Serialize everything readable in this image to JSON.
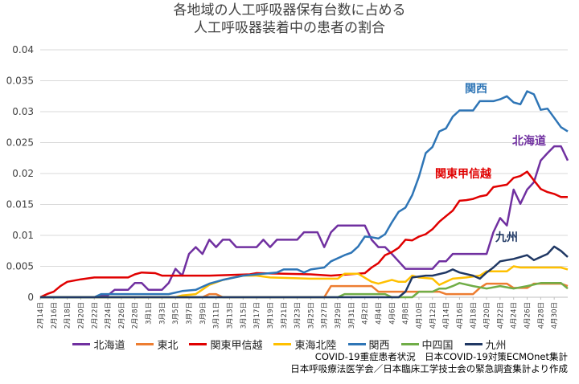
{
  "chart_data": {
    "type": "line",
    "title_lines": [
      "各地域の人工呼吸器保有台数に占める",
      "人工呼吸器装着中の患者の割合"
    ],
    "ylim": [
      0,
      0.04
    ],
    "y_ticks": [
      "0",
      "0.005",
      "0.01",
      "0.015",
      "0.02",
      "0.025",
      "0.03",
      "0.035",
      "0.04"
    ],
    "y_tick_values": [
      0,
      0.005,
      0.01,
      0.015,
      0.02,
      0.025,
      0.03,
      0.035,
      0.04
    ],
    "x_start": "2月14日",
    "x_end": "4月30日",
    "x_tick_labels": [
      "2月14日",
      "2月16日",
      "2月18日",
      "2月20日",
      "2月22日",
      "2月24日",
      "2月26日",
      "2月28日",
      "3月1日",
      "3月3日",
      "3月5日",
      "3月7日",
      "3月9日",
      "3月11日",
      "3月13日",
      "3月15日",
      "3月17日",
      "3月19日",
      "3月21日",
      "3月23日",
      "3月25日",
      "3月27日",
      "3月29日",
      "3月31日",
      "4月2日",
      "4月4日",
      "4月6日",
      "4月8日",
      "4月10日",
      "4月12日",
      "4月14日",
      "4月16日",
      "4月18日",
      "4月20日",
      "4月22日",
      "4月24日",
      "4月26日",
      "4月28日",
      "4月30日"
    ],
    "grid": true,
    "legend_position": "bottom",
    "series": [
      {
        "name": "北海道",
        "color": "#7030a0",
        "label": "北海道",
        "values": [
          [
            "2月14日",
            0
          ],
          [
            "2月22日",
            0
          ],
          [
            "2月23日",
            0.0003
          ],
          [
            "2月24日",
            0.0003
          ],
          [
            "2月25日",
            0.0012
          ],
          [
            "2月27日",
            0.0012
          ],
          [
            "2月28日",
            0.0023
          ],
          [
            "2月29日",
            0.0023
          ],
          [
            "3月1日",
            0.0012
          ],
          [
            "3月3日",
            0.0012
          ],
          [
            "3月4日",
            0.0023
          ],
          [
            "3月5日",
            0.0046
          ],
          [
            "3月6日",
            0.0035
          ],
          [
            "3月7日",
            0.007
          ],
          [
            "3月8日",
            0.0081
          ],
          [
            "3月9日",
            0.007
          ],
          [
            "3月10日",
            0.0093
          ],
          [
            "3月11日",
            0.0081
          ],
          [
            "3月12日",
            0.0093
          ],
          [
            "3月13日",
            0.0093
          ],
          [
            "3月14日",
            0.0081
          ],
          [
            "3月17日",
            0.0081
          ],
          [
            "3月18日",
            0.0093
          ],
          [
            "3月19日",
            0.0081
          ],
          [
            "3月20日",
            0.0093
          ],
          [
            "3月23日",
            0.0093
          ],
          [
            "3月24日",
            0.0105
          ],
          [
            "3月26日",
            0.0105
          ],
          [
            "3月27日",
            0.0081
          ],
          [
            "3月28日",
            0.0105
          ],
          [
            "3月29日",
            0.0116
          ],
          [
            "4月2日",
            0.0116
          ],
          [
            "4月3日",
            0.0093
          ],
          [
            "4月4日",
            0.0081
          ],
          [
            "4月5日",
            0.0081
          ],
          [
            "4月6日",
            0.007
          ],
          [
            "4月7日",
            0.0058
          ],
          [
            "4月8日",
            0.0046
          ],
          [
            "4月12日",
            0.0046
          ],
          [
            "4月13日",
            0.0058
          ],
          [
            "4月14日",
            0.0058
          ],
          [
            "4月15日",
            0.007
          ],
          [
            "4月20日",
            0.007
          ],
          [
            "4月21日",
            0.0105
          ],
          [
            "4月22日",
            0.0128
          ],
          [
            "4月23日",
            0.0116
          ],
          [
            "4月24日",
            0.0174
          ],
          [
            "4月25日",
            0.0151
          ],
          [
            "4月26日",
            0.0174
          ],
          [
            "4月27日",
            0.0186
          ],
          [
            "4月28日",
            0.0221
          ],
          [
            "4月29日",
            0.0233
          ],
          [
            "4月30日",
            0.0244
          ],
          [
            "5月1日",
            0.0244
          ],
          [
            "5月2日",
            0.0221
          ]
        ]
      },
      {
        "name": "東北",
        "color": "#ed7d31",
        "label": "",
        "values": [
          [
            "2月14日",
            0
          ],
          [
            "3月9日",
            0
          ],
          [
            "3月10日",
            0.0005
          ],
          [
            "3月11日",
            0.0005
          ],
          [
            "3月12日",
            0
          ],
          [
            "3月27日",
            0
          ],
          [
            "3月28日",
            0.0018
          ],
          [
            "4月3日",
            0.0018
          ],
          [
            "4月4日",
            0.0009
          ],
          [
            "4月10日",
            0.0009
          ],
          [
            "4月11日",
            0.0009
          ],
          [
            "4月13日",
            0.0009
          ],
          [
            "4月14日",
            0.0005
          ],
          [
            "4月18日",
            0.0005
          ],
          [
            "4月19日",
            0.0015
          ],
          [
            "4月20日",
            0.0022
          ],
          [
            "4月23日",
            0.0022
          ],
          [
            "4月24日",
            0.0015
          ],
          [
            "4月26日",
            0.0015
          ],
          [
            "4月27日",
            0.0022
          ],
          [
            "5月1日",
            0.0022
          ],
          [
            "5月2日",
            0.0018
          ]
        ]
      },
      {
        "name": "関東甲信越",
        "color": "#e00000",
        "label": "関東甲信越",
        "values": [
          [
            "2月14日",
            0
          ],
          [
            "2月15日",
            0.0005
          ],
          [
            "2月16日",
            0.0009
          ],
          [
            "2月17日",
            0.0018
          ],
          [
            "2月18日",
            0.0025
          ],
          [
            "2月20日",
            0.0029
          ],
          [
            "2月22日",
            0.0032
          ],
          [
            "2月27日",
            0.0032
          ],
          [
            "2月28日",
            0.0037
          ],
          [
            "2月29日",
            0.004
          ],
          [
            "3月2日",
            0.0039
          ],
          [
            "3月3日",
            0.0035
          ],
          [
            "3月10日",
            0.0035
          ],
          [
            "3月16日",
            0.0037
          ],
          [
            "3月17日",
            0.0039
          ],
          [
            "3月25日",
            0.0037
          ],
          [
            "3月28日",
            0.0035
          ],
          [
            "4月2日",
            0.0039
          ],
          [
            "4月3日",
            0.0048
          ],
          [
            "4月4日",
            0.0055
          ],
          [
            "4月5日",
            0.0068
          ],
          [
            "4月6日",
            0.0073
          ],
          [
            "4月7日",
            0.008
          ],
          [
            "4月8日",
            0.0093
          ],
          [
            "4月9日",
            0.0092
          ],
          [
            "4月10日",
            0.0098
          ],
          [
            "4月11日",
            0.0102
          ],
          [
            "4月12日",
            0.011
          ],
          [
            "4月13日",
            0.0122
          ],
          [
            "4月14日",
            0.0131
          ],
          [
            "4月15日",
            0.014
          ],
          [
            "4月16日",
            0.0156
          ],
          [
            "4月17日",
            0.0157
          ],
          [
            "4月18日",
            0.0159
          ],
          [
            "4月19日",
            0.0163
          ],
          [
            "4月20日",
            0.0165
          ],
          [
            "4月21日",
            0.0178
          ],
          [
            "4月22日",
            0.018
          ],
          [
            "4月23日",
            0.0182
          ],
          [
            "4月24日",
            0.0193
          ],
          [
            "4月25日",
            0.0196
          ],
          [
            "4月26日",
            0.0203
          ],
          [
            "4月27日",
            0.0189
          ],
          [
            "4月28日",
            0.0175
          ],
          [
            "4月29日",
            0.017
          ],
          [
            "4月30日",
            0.0167
          ],
          [
            "5月1日",
            0.0162
          ],
          [
            "5月2日",
            0.0162
          ]
        ]
      },
      {
        "name": "東海北陸",
        "color": "#ffc000",
        "label": "",
        "values": [
          [
            "2月14日",
            0
          ],
          [
            "3月5日",
            0
          ],
          [
            "3月6日",
            0.0003
          ],
          [
            "3月8日",
            0.0005
          ],
          [
            "3月10日",
            0.002
          ],
          [
            "3月12日",
            0.0028
          ],
          [
            "3月15日",
            0.0035
          ],
          [
            "3月17日",
            0.0035
          ],
          [
            "3月19日",
            0.0032
          ],
          [
            "3月25日",
            0.003
          ],
          [
            "3月29日",
            0.003
          ],
          [
            "3月30日",
            0.0038
          ],
          [
            "4月1日",
            0.0038
          ],
          [
            "4月3日",
            0.0025
          ],
          [
            "4月4日",
            0.0022
          ],
          [
            "4月6日",
            0.0028
          ],
          [
            "4月7日",
            0.0025
          ],
          [
            "4月8日",
            0.0025
          ],
          [
            "4月9日",
            0.0035
          ],
          [
            "4月10日",
            0.0032
          ],
          [
            "4月12日",
            0.003
          ],
          [
            "4月13日",
            0.002
          ],
          [
            "4月15日",
            0.003
          ],
          [
            "4月17日",
            0.0032
          ],
          [
            "4月19日",
            0.0035
          ],
          [
            "4月20日",
            0.0042
          ],
          [
            "4月23日",
            0.0042
          ],
          [
            "4月24日",
            0.005
          ],
          [
            "4月25日",
            0.0048
          ],
          [
            "5月1日",
            0.0048
          ],
          [
            "5月2日",
            0.0045
          ]
        ]
      },
      {
        "name": "関西",
        "color": "#2e75b6",
        "label": "関西",
        "values": [
          [
            "2月14日",
            0
          ],
          [
            "2月22日",
            0
          ],
          [
            "2月23日",
            0.0005
          ],
          [
            "3月4日",
            0.0005
          ],
          [
            "3月6日",
            0.001
          ],
          [
            "3月8日",
            0.0012
          ],
          [
            "3月10日",
            0.0022
          ],
          [
            "3月12日",
            0.0028
          ],
          [
            "3月15日",
            0.0035
          ],
          [
            "3月18日",
            0.0038
          ],
          [
            "3月20日",
            0.004
          ],
          [
            "3月21日",
            0.0045
          ],
          [
            "3月23日",
            0.0045
          ],
          [
            "3月24日",
            0.004
          ],
          [
            "3月25日",
            0.0045
          ],
          [
            "3月27日",
            0.0048
          ],
          [
            "3月28日",
            0.0058
          ],
          [
            "3月30日",
            0.0068
          ],
          [
            "3月31日",
            0.0072
          ],
          [
            "4月1日",
            0.0082
          ],
          [
            "4月2日",
            0.0098
          ],
          [
            "4月3日",
            0.0097
          ],
          [
            "4月4日",
            0.0095
          ],
          [
            "4月5日",
            0.0102
          ],
          [
            "4月6日",
            0.0121
          ],
          [
            "4月7日",
            0.0138
          ],
          [
            "4月8日",
            0.0145
          ],
          [
            "4月9日",
            0.0165
          ],
          [
            "4月10日",
            0.0195
          ],
          [
            "4月11日",
            0.0233
          ],
          [
            "4月12日",
            0.0243
          ],
          [
            "4月13日",
            0.0268
          ],
          [
            "4月14日",
            0.0273
          ],
          [
            "4月15日",
            0.0292
          ],
          [
            "4月16日",
            0.0302
          ],
          [
            "4月17日",
            0.0302
          ],
          [
            "4月18日",
            0.0302
          ],
          [
            "4月19日",
            0.0317
          ],
          [
            "4月20日",
            0.0317
          ],
          [
            "4月21日",
            0.0317
          ],
          [
            "4月22日",
            0.032
          ],
          [
            "4月23日",
            0.0325
          ],
          [
            "4月24日",
            0.0315
          ],
          [
            "4月25日",
            0.0312
          ],
          [
            "4月26日",
            0.0333
          ],
          [
            "4月27日",
            0.0328
          ],
          [
            "4月28日",
            0.0303
          ],
          [
            "4月29日",
            0.0305
          ],
          [
            "4月30日",
            0.029
          ],
          [
            "5月1日",
            0.0275
          ],
          [
            "5月2日",
            0.0268
          ]
        ]
      },
      {
        "name": "中四国",
        "color": "#70ad47",
        "label": "",
        "values": [
          [
            "2月14日",
            0
          ],
          [
            "3月29日",
            0
          ],
          [
            "3月30日",
            0.0005
          ],
          [
            "4月5日",
            0.0005
          ],
          [
            "4月6日",
            0
          ],
          [
            "4月9日",
            0
          ],
          [
            "4月10日",
            0.0009
          ],
          [
            "4月12日",
            0.0009
          ],
          [
            "4月13日",
            0.0014
          ],
          [
            "4月14日",
            0.0014
          ],
          [
            "4月15日",
            0.0018
          ],
          [
            "4月16日",
            0.0023
          ],
          [
            "4月18日",
            0.0018
          ],
          [
            "4月20日",
            0.0014
          ],
          [
            "4月22日",
            0.0018
          ],
          [
            "4月24日",
            0.0014
          ],
          [
            "4月26日",
            0.0018
          ],
          [
            "4月28日",
            0.0023
          ],
          [
            "5月1日",
            0.0023
          ],
          [
            "5月2日",
            0.0014
          ]
        ]
      },
      {
        "name": "九州",
        "color": "#203864",
        "label": "九州",
        "values": [
          [
            "2月14日",
            0
          ],
          [
            "4月7日",
            0
          ],
          [
            "4月8日",
            0.0009
          ],
          [
            "4月9日",
            0.0032
          ],
          [
            "4月11日",
            0.0035
          ],
          [
            "4月12日",
            0.0035
          ],
          [
            "4月14日",
            0.004
          ],
          [
            "4月15日",
            0.0045
          ],
          [
            "4月16日",
            0.004
          ],
          [
            "4月18日",
            0.0035
          ],
          [
            "4月19日",
            0.003
          ],
          [
            "4月20日",
            0.004
          ],
          [
            "4月21日",
            0.0048
          ],
          [
            "4月22日",
            0.0058
          ],
          [
            "4月24日",
            0.0062
          ],
          [
            "4月26日",
            0.0068
          ],
          [
            "4月27日",
            0.006
          ],
          [
            "4月28日",
            0.0065
          ],
          [
            "4月29日",
            0.007
          ],
          [
            "4月30日",
            0.0082
          ],
          [
            "5月1日",
            0.0075
          ],
          [
            "5月2日",
            0.0065
          ]
        ]
      }
    ]
  },
  "footer": {
    "line1": "COVID-19重症患者状況　日本COVID-19対策ECMOnet集計",
    "line2": "日本呼吸療法医学会／日本臨床工学技士会の緊急調査集計より作成"
  }
}
